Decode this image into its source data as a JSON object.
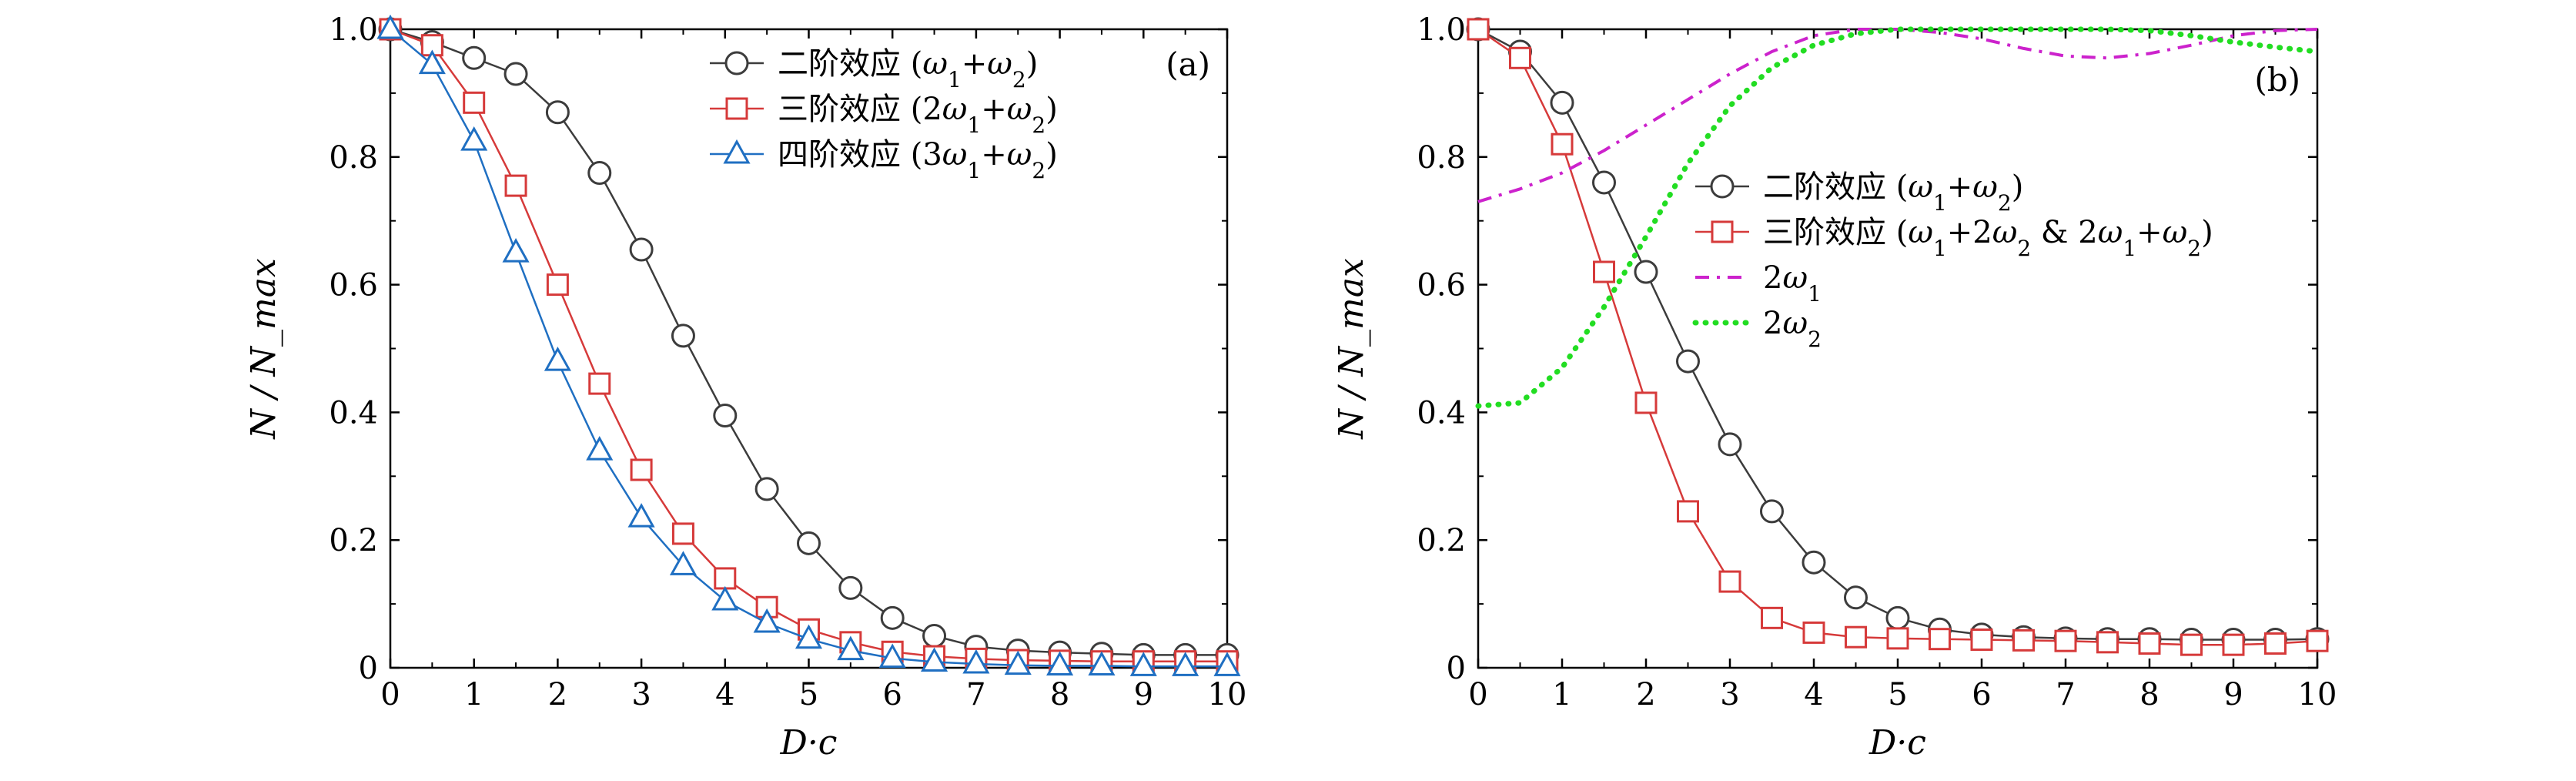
{
  "figure": {
    "panels": [
      "(a)",
      "(b)"
    ]
  },
  "chart_data": [
    {
      "type": "line",
      "panel_label": "(a)",
      "xlabel": "D·c",
      "ylabel": "N / N_max",
      "xlim": [
        0,
        10
      ],
      "ylim": [
        0,
        1
      ],
      "xticks": [
        "0",
        "1",
        "2",
        "3",
        "4",
        "5",
        "6",
        "7",
        "8",
        "9",
        "10"
      ],
      "yticks": [
        "0",
        "0.2",
        "0.4",
        "0.6",
        "0.8",
        "1.0"
      ],
      "grid": false,
      "legend_position": "top-right",
      "x": [
        0,
        0.5,
        1,
        1.5,
        2,
        2.5,
        3,
        3.5,
        4,
        4.5,
        5,
        5.5,
        6,
        6.5,
        7,
        7.5,
        8,
        8.5,
        9,
        9.5,
        10
      ],
      "series": [
        {
          "name": "二阶效应 (ω1+ω2)",
          "color": "#3c3c3c",
          "marker": "circle",
          "values": [
            1.0,
            0.98,
            0.955,
            0.93,
            0.87,
            0.775,
            0.655,
            0.52,
            0.395,
            0.28,
            0.195,
            0.125,
            0.078,
            0.05,
            0.033,
            0.027,
            0.024,
            0.022,
            0.02,
            0.02,
            0.02
          ]
        },
        {
          "name": "三阶效应 (2ω1+ω2)",
          "color": "#d63a3a",
          "marker": "square",
          "values": [
            1.0,
            0.975,
            0.885,
            0.755,
            0.6,
            0.445,
            0.31,
            0.21,
            0.14,
            0.095,
            0.06,
            0.04,
            0.025,
            0.018,
            0.014,
            0.012,
            0.011,
            0.01,
            0.01,
            0.01,
            0.01
          ]
        },
        {
          "name": "四阶效应 (3ω1+ω2)",
          "color": "#1f6fc2",
          "marker": "triangle",
          "values": [
            1.0,
            0.945,
            0.825,
            0.65,
            0.48,
            0.34,
            0.235,
            0.16,
            0.105,
            0.07,
            0.045,
            0.027,
            0.015,
            0.009,
            0.006,
            0.004,
            0.003,
            0.003,
            0.002,
            0.002,
            0.002
          ]
        }
      ]
    },
    {
      "type": "line",
      "panel_label": "(b)",
      "xlabel": "D·c",
      "ylabel": "N / N_max",
      "xlim": [
        0,
        10
      ],
      "ylim": [
        0,
        1
      ],
      "xticks": [
        "0",
        "1",
        "2",
        "3",
        "4",
        "5",
        "6",
        "7",
        "8",
        "9",
        "10"
      ],
      "yticks": [
        "0",
        "0.2",
        "0.4",
        "0.6",
        "0.8",
        "1.0"
      ],
      "grid": false,
      "legend_position": "center-right",
      "series": [
        {
          "name": "二阶效应 (ω1+ω2)",
          "color": "#3c3c3c",
          "marker": "circle",
          "x": [
            0,
            0.5,
            1,
            1.5,
            2,
            2.5,
            3,
            3.5,
            4,
            4.5,
            5,
            5.5,
            6,
            6.5,
            7,
            7.5,
            8,
            8.5,
            9,
            9.5,
            10
          ],
          "values": [
            1.0,
            0.965,
            0.885,
            0.76,
            0.62,
            0.48,
            0.35,
            0.245,
            0.165,
            0.11,
            0.078,
            0.06,
            0.052,
            0.048,
            0.046,
            0.045,
            0.045,
            0.044,
            0.044,
            0.044,
            0.045
          ]
        },
        {
          "name": "三阶效应 (ω1+2ω2 & 2ω1+ω2)",
          "color": "#d63a3a",
          "marker": "square",
          "x": [
            0,
            0.5,
            1,
            1.5,
            2,
            2.5,
            3,
            3.5,
            4,
            4.5,
            5,
            5.5,
            6,
            6.5,
            7,
            7.5,
            8,
            8.5,
            9,
            9.5,
            10
          ],
          "values": [
            1.0,
            0.955,
            0.82,
            0.62,
            0.415,
            0.245,
            0.135,
            0.078,
            0.055,
            0.048,
            0.046,
            0.045,
            0.044,
            0.043,
            0.042,
            0.04,
            0.038,
            0.036,
            0.036,
            0.038,
            0.042
          ]
        },
        {
          "name": "2ω1",
          "color": "#cc22cc",
          "marker": "none",
          "dash": "dashdot",
          "x": [
            0,
            0.5,
            1,
            1.5,
            2,
            2.5,
            3,
            3.5,
            4,
            4.5,
            5,
            5.5,
            6,
            6.5,
            7,
            7.5,
            8,
            8.5,
            9,
            9.5,
            10
          ],
          "values": [
            0.73,
            0.75,
            0.775,
            0.81,
            0.85,
            0.89,
            0.93,
            0.965,
            0.99,
            1.0,
            1.0,
            0.995,
            0.985,
            0.97,
            0.958,
            0.955,
            0.962,
            0.975,
            0.99,
            0.998,
            1.0
          ]
        },
        {
          "name": "2ω2",
          "color": "#22dd22",
          "marker": "none",
          "dash": "dotted",
          "x": [
            0,
            0.5,
            1,
            1.5,
            2,
            2.5,
            3,
            3.5,
            4,
            4.5,
            5,
            5.5,
            6,
            6.5,
            7,
            7.5,
            8,
            8.5,
            9,
            9.5,
            10
          ],
          "values": [
            0.41,
            0.415,
            0.47,
            0.565,
            0.675,
            0.79,
            0.88,
            0.94,
            0.975,
            0.993,
            1.0,
            1.0,
            1.0,
            1.0,
            1.0,
            1.0,
            0.998,
            0.99,
            0.98,
            0.972,
            0.965
          ]
        }
      ]
    }
  ]
}
